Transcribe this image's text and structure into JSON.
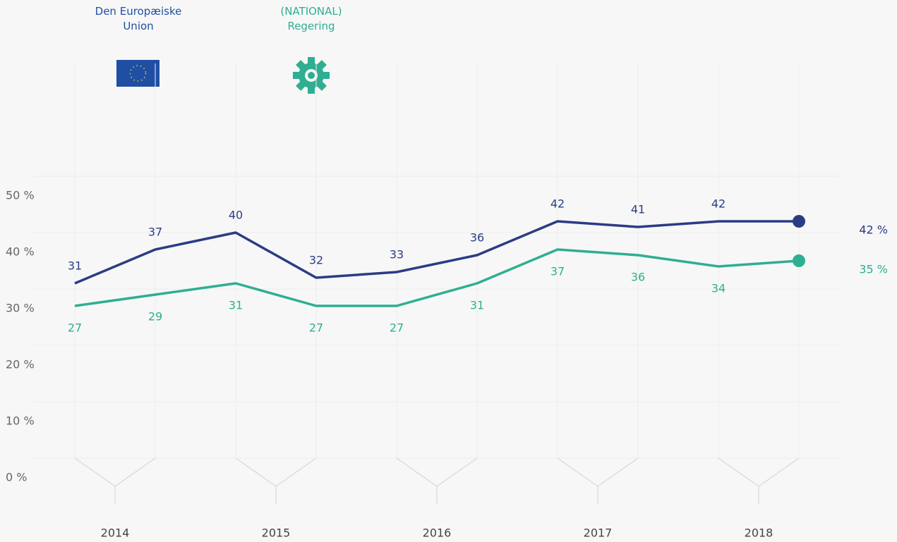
{
  "chart_data": {
    "type": "line",
    "groups": [
      "2014",
      "2015",
      "2016",
      "2017",
      "2018"
    ],
    "series": [
      {
        "name": "Den Europæiske Union",
        "color": "#2b3c85",
        "values": [
          31,
          37,
          40,
          32,
          33,
          36,
          42,
          41,
          42,
          42
        ],
        "end_label": "42 %"
      },
      {
        "name": "(NATIONAL) Regering",
        "color": "#2fae92",
        "values": [
          27,
          29,
          31,
          27,
          27,
          31,
          37,
          36,
          34,
          35
        ],
        "end_label": "35 %"
      }
    ],
    "ylim": [
      0,
      70
    ],
    "yticks": [
      {
        "value": 0,
        "label": "0 %"
      },
      {
        "value": 10,
        "label": "10 %"
      },
      {
        "value": 20,
        "label": "20 %"
      },
      {
        "value": 30,
        "label": "30 %"
      },
      {
        "value": 40,
        "label": "40 %"
      },
      {
        "value": 50,
        "label": "50 %"
      }
    ],
    "grid": true
  }
}
